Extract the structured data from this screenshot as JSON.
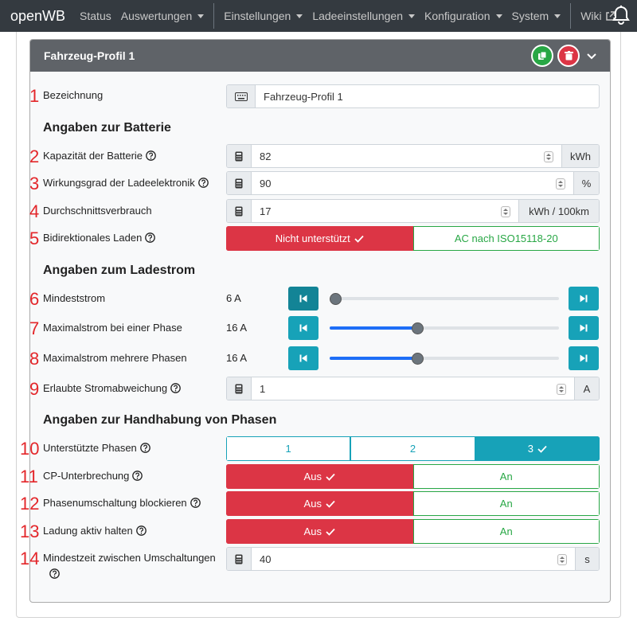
{
  "navbar": {
    "brand": "openWB",
    "items": [
      {
        "label": "Status"
      },
      {
        "label": "Auswertungen"
      },
      {
        "label": "Einstellungen"
      },
      {
        "label": "Ladeeinstellungen"
      },
      {
        "label": "Konfiguration"
      },
      {
        "label": "System"
      },
      {
        "label": "Wiki"
      }
    ]
  },
  "card": {
    "title": "Fahrzeug-Profil 1"
  },
  "markers": [
    "1",
    "2",
    "3",
    "4",
    "5",
    "6",
    "7",
    "8",
    "9",
    "10",
    "11",
    "12",
    "13",
    "14"
  ],
  "sections": {
    "battery": "Angaben zur Batterie",
    "current": "Angaben zum Ladestrom",
    "phases": "Angaben zur Handhabung von Phasen"
  },
  "fields": {
    "name": {
      "label": "Bezeichnung",
      "value": "Fahrzeug-Profil 1"
    },
    "capacity": {
      "label": "Kapazität der Batterie",
      "value": "82",
      "unit": "kWh"
    },
    "efficiency": {
      "label": "Wirkungsgrad der Ladeelektronik",
      "value": "90",
      "unit": "%"
    },
    "consumption": {
      "label": "Durchschnittsverbrauch",
      "value": "17",
      "unit": "kWh / 100km"
    },
    "bidi": {
      "label": "Bidirektionales Laden",
      "options": [
        "Nicht unterstützt",
        "AC nach ISO15118-20"
      ],
      "selected": 0
    },
    "min_current": {
      "label": "Mindeststrom",
      "value": "6 A",
      "position": 0.0
    },
    "max_single": {
      "label": "Maximalstrom bei einer Phase",
      "value": "16 A",
      "position": 0.385
    },
    "max_multi": {
      "label": "Maximalstrom mehrere Phasen",
      "value": "16 A",
      "position": 0.385
    },
    "deviation": {
      "label": "Erlaubte Stromabweichung",
      "value": "1",
      "unit": "A"
    },
    "phases": {
      "label": "Unterstützte Phasen",
      "options": [
        "1",
        "2",
        "3"
      ],
      "selected": 2
    },
    "cp_interrupt": {
      "label": "CP-Unterbrechung",
      "options": [
        "Aus",
        "An"
      ],
      "selected": 0
    },
    "phase_block": {
      "label": "Phasenumschaltung blockieren",
      "options": [
        "Aus",
        "An"
      ],
      "selected": 0
    },
    "keep_active": {
      "label": "Ladung aktiv halten",
      "options": [
        "Aus",
        "An"
      ],
      "selected": 0
    },
    "min_switch_time": {
      "label": "Mindestzeit zwischen Umschaltungen",
      "value": "40",
      "unit": "s"
    }
  },
  "colors": {
    "marker": "#e3262a",
    "danger": "#dc3545",
    "success": "#28a745",
    "info": "#17a2b8",
    "slider_fill": "#1e6ef7"
  }
}
